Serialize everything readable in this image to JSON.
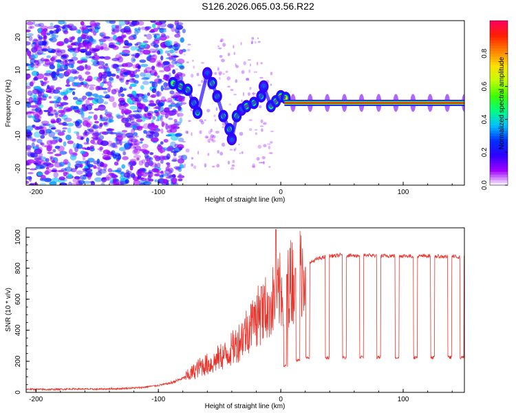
{
  "page": {
    "title": "S126.2026.065.03.56.R22"
  },
  "colors": {
    "background": "#ffffff",
    "spectrogram_bg": "#ffffff",
    "snr_line": "#e8332b",
    "axis": "#000000"
  },
  "chart_data": [
    {
      "type": "heatmap",
      "title": "S126.2026.065.03.56.R22",
      "xlabel": "Height of straight line (km)",
      "ylabel": "Frequency (Hz)",
      "xlim": [
        -208,
        150
      ],
      "ylim": [
        -25,
        25
      ],
      "xticks": [
        -200,
        -100,
        0,
        100
      ],
      "xtick_labels": [
        "-200",
        "-100",
        "0",
        "100"
      ],
      "yticks": [
        20,
        10,
        0,
        -10,
        -20
      ],
      "ytick_labels": [
        "20",
        "10",
        "0",
        "-10",
        "-20"
      ],
      "noise_region": {
        "x_range": [
          -208,
          -87
        ],
        "y_range": [
          -25,
          25
        ],
        "amplitude_range": [
          0.05,
          0.25
        ]
      },
      "carrier_track": {
        "description": "strong carrier near 0 Hz from about 0 km to 150 km",
        "x_range": [
          3,
          150
        ],
        "frequency_hz": 0,
        "amplitude": 0.9
      },
      "signal_blobs": [
        {
          "x": -88,
          "y": 6,
          "amplitude": 0.45
        },
        {
          "x": -82,
          "y": 5,
          "amplitude": 0.5
        },
        {
          "x": -76,
          "y": 4,
          "amplitude": 0.45
        },
        {
          "x": -71,
          "y": 0,
          "amplitude": 0.35
        },
        {
          "x": -68,
          "y": -3,
          "amplitude": 0.4
        },
        {
          "x": -60,
          "y": 9,
          "amplitude": 0.3
        },
        {
          "x": -56,
          "y": 6,
          "amplitude": 0.45
        },
        {
          "x": -52,
          "y": 2,
          "amplitude": 0.35
        },
        {
          "x": -47,
          "y": -4,
          "amplitude": 0.4
        },
        {
          "x": -42,
          "y": -8,
          "amplitude": 0.45
        },
        {
          "x": -40,
          "y": -11,
          "amplitude": 0.3
        },
        {
          "x": -36,
          "y": -4,
          "amplitude": 0.45
        },
        {
          "x": -32,
          "y": -2,
          "amplitude": 0.3
        },
        {
          "x": -28,
          "y": -1,
          "amplitude": 0.5
        },
        {
          "x": -22,
          "y": 0,
          "amplitude": 0.45
        },
        {
          "x": -16,
          "y": 2,
          "amplitude": 0.4
        },
        {
          "x": -14,
          "y": 5,
          "amplitude": 0.3
        },
        {
          "x": -8,
          "y": -1,
          "amplitude": 0.45
        },
        {
          "x": -4,
          "y": 0.5,
          "amplitude": 0.5
        },
        {
          "x": 0,
          "y": 2,
          "amplitude": 0.55
        },
        {
          "x": 4,
          "y": 1.5,
          "amplitude": 0.55
        }
      ],
      "colorbar": {
        "label": "Normalized spectral amplitude",
        "range": [
          0,
          1
        ],
        "ticks": [
          0.0,
          0.2,
          0.4,
          0.6,
          0.8
        ],
        "tick_labels": [
          "0.0",
          "0.2",
          "0.4",
          "0.6",
          "0.8"
        ],
        "colormap": [
          "#ffffff",
          "#a000ff",
          "#3000ff",
          "#0030ff",
          "#00c0ff",
          "#00ff80",
          "#40ff00",
          "#c0ff00",
          "#ffe000",
          "#ff8000",
          "#ff2000",
          "#ff0060"
        ]
      }
    },
    {
      "type": "line",
      "xlabel": "Height of straight line (km)",
      "ylabel": "SNR (10 * v/v)",
      "xlim": [
        -208,
        150
      ],
      "ylim": [
        0,
        1060
      ],
      "xticks": [
        -200,
        -100,
        0,
        100
      ],
      "xtick_labels": [
        "-200",
        "-100",
        "0",
        "100"
      ],
      "yticks": [
        0,
        200,
        400,
        600,
        800,
        1000
      ],
      "ytick_labels": [
        "0",
        "200",
        "400",
        "600",
        "800",
        "1000"
      ],
      "series": [
        {
          "name": "SNR",
          "x": [
            -208,
            -190,
            -170,
            -150,
            -130,
            -115,
            -100,
            -90,
            -80,
            -75,
            -70,
            -65,
            -60,
            -55,
            -50,
            -45,
            -40,
            -35,
            -30,
            -25,
            -20,
            -15,
            -10,
            -5,
            0,
            5,
            10,
            15,
            20,
            25,
            30,
            35,
            40,
            45,
            50,
            60,
            70,
            80,
            90,
            100,
            110,
            120,
            130,
            140,
            150
          ],
          "values": [
            20,
            18,
            22,
            20,
            25,
            30,
            45,
            60,
            90,
            110,
            140,
            170,
            180,
            190,
            230,
            240,
            280,
            320,
            380,
            430,
            480,
            520,
            560,
            600,
            650,
            690,
            730,
            770,
            810,
            840,
            860,
            870,
            880,
            880,
            885,
            880,
            885,
            880,
            880,
            880,
            875,
            880,
            875,
            875,
            870
          ],
          "spikes": [
            {
              "x": -50,
              "value": 250
            },
            {
              "x": -40,
              "value": 300
            },
            {
              "x": -30,
              "value": 410
            },
            {
              "x": -22,
              "value": 550
            },
            {
              "x": -16,
              "value": 680
            },
            {
              "x": -10,
              "value": 620
            },
            {
              "x": -4,
              "value": 1050
            },
            {
              "x": 5,
              "value": 760
            },
            {
              "x": 12,
              "value": 800
            }
          ],
          "dropouts": [
            {
              "x": 4,
              "value": 170
            },
            {
              "x": 14,
              "value": 210
            },
            {
              "x": 22,
              "value": 220
            },
            {
              "x": 38,
              "value": 225
            },
            {
              "x": 52,
              "value": 225
            },
            {
              "x": 66,
              "value": 225
            },
            {
              "x": 80,
              "value": 225
            },
            {
              "x": 95,
              "value": 225
            },
            {
              "x": 110,
              "value": 225
            },
            {
              "x": 124,
              "value": 225
            },
            {
              "x": 138,
              "value": 225
            },
            {
              "x": 148,
              "value": 225
            }
          ]
        }
      ]
    }
  ]
}
